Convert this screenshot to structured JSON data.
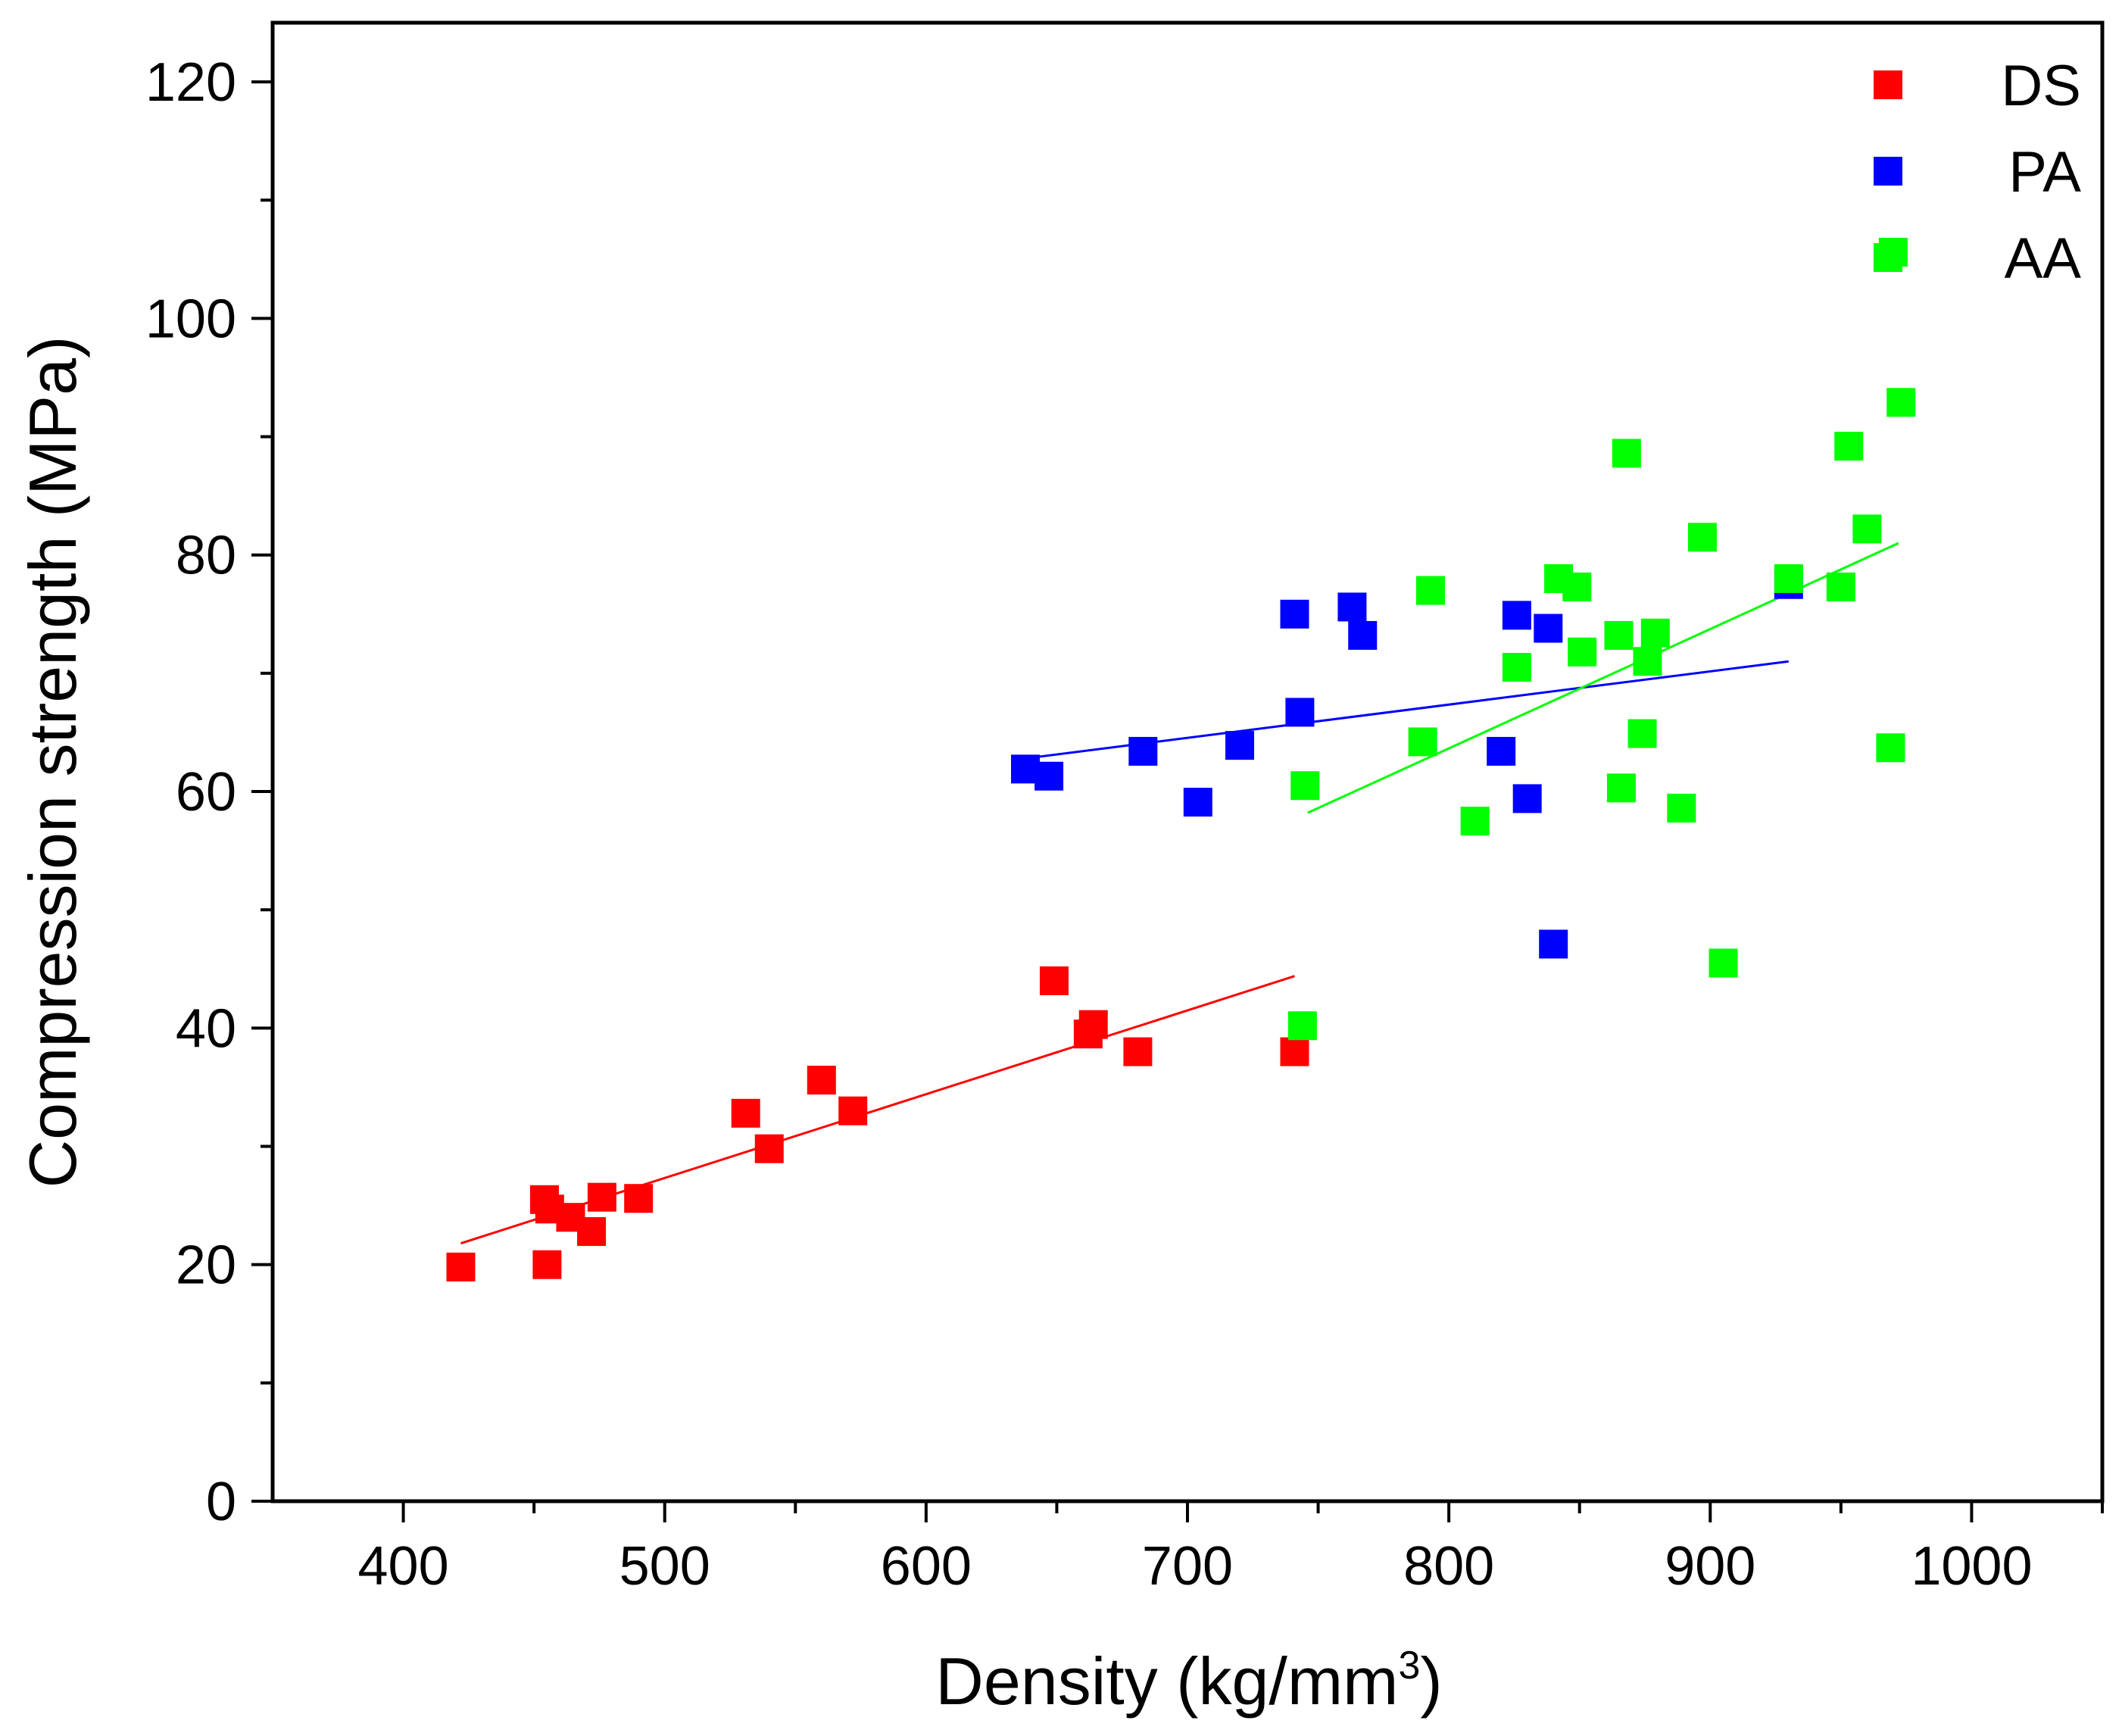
{
  "chart_data": {
    "type": "scatter",
    "title": "",
    "xlabel": "Density (kg/mm",
    "xlabel_superscript": "3",
    "xlabel_suffix": ")",
    "ylabel": "Compression strength (MPa)",
    "xlim": [
      350,
      1050
    ],
    "ylim": [
      0,
      125
    ],
    "x_ticks": [
      400,
      500,
      600,
      700,
      800,
      900,
      1000
    ],
    "x_tick_labels": [
      "400",
      "500",
      "600",
      "700",
      "800",
      "900",
      "1000"
    ],
    "y_ticks": [
      0,
      20,
      40,
      60,
      80,
      100,
      120
    ],
    "y_tick_labels": [
      "0",
      "20",
      "40",
      "60",
      "80",
      "100",
      "120"
    ],
    "grid": false,
    "legend_position": "top-right",
    "series": [
      {
        "name": "DS",
        "color": "#ff0000",
        "points": [
          [
            422,
            19.8
          ],
          [
            454,
            25.5
          ],
          [
            456,
            24.7
          ],
          [
            455,
            20.0
          ],
          [
            464,
            24.0
          ],
          [
            472,
            22.8
          ],
          [
            476,
            25.7
          ],
          [
            490,
            25.6
          ],
          [
            531,
            32.8
          ],
          [
            540,
            29.8
          ],
          [
            560,
            35.6
          ],
          [
            572,
            33.0
          ],
          [
            649,
            44.0
          ],
          [
            662,
            39.5
          ],
          [
            664,
            40.3
          ],
          [
            681,
            38.0
          ],
          [
            741,
            38.0
          ]
        ],
        "fit": {
          "x": [
            422,
            741
          ],
          "y": [
            21.8,
            44.4
          ]
        }
      },
      {
        "name": "PA",
        "color": "#0000ff",
        "points": [
          [
            638,
            61.9
          ],
          [
            647,
            61.3
          ],
          [
            683,
            63.4
          ],
          [
            704,
            59.1
          ],
          [
            720,
            63.9
          ],
          [
            741,
            75.0
          ],
          [
            743,
            66.7
          ],
          [
            763,
            75.6
          ],
          [
            767,
            73.2
          ],
          [
            820,
            63.4
          ],
          [
            826,
            74.9
          ],
          [
            830,
            59.4
          ],
          [
            838,
            73.8
          ],
          [
            840,
            47.1
          ],
          [
            930,
            77.5
          ]
        ],
        "fit": {
          "x": [
            638,
            930
          ],
          "y": [
            62.8,
            71.0
          ]
        }
      },
      {
        "name": "AA",
        "color": "#00ff00",
        "points": [
          [
            744,
            40.2
          ],
          [
            745,
            60.5
          ],
          [
            790,
            64.2
          ],
          [
            793,
            77.0
          ],
          [
            810,
            57.5
          ],
          [
            826,
            70.5
          ],
          [
            842,
            78.0
          ],
          [
            849,
            77.3
          ],
          [
            851,
            71.8
          ],
          [
            865,
            73.2
          ],
          [
            866,
            60.3
          ],
          [
            868,
            88.6
          ],
          [
            874,
            64.9
          ],
          [
            876,
            71.0
          ],
          [
            879,
            73.4
          ],
          [
            889,
            58.6
          ],
          [
            897,
            81.5
          ],
          [
            905,
            45.5
          ],
          [
            930,
            78.0
          ],
          [
            950,
            77.3
          ],
          [
            953,
            89.2
          ],
          [
            960,
            82.2
          ],
          [
            969,
            63.7
          ],
          [
            970,
            105.6
          ],
          [
            973,
            92.9
          ]
        ],
        "fit": {
          "x": [
            746,
            972
          ],
          "y": [
            58.2,
            81.0
          ]
        }
      }
    ]
  }
}
